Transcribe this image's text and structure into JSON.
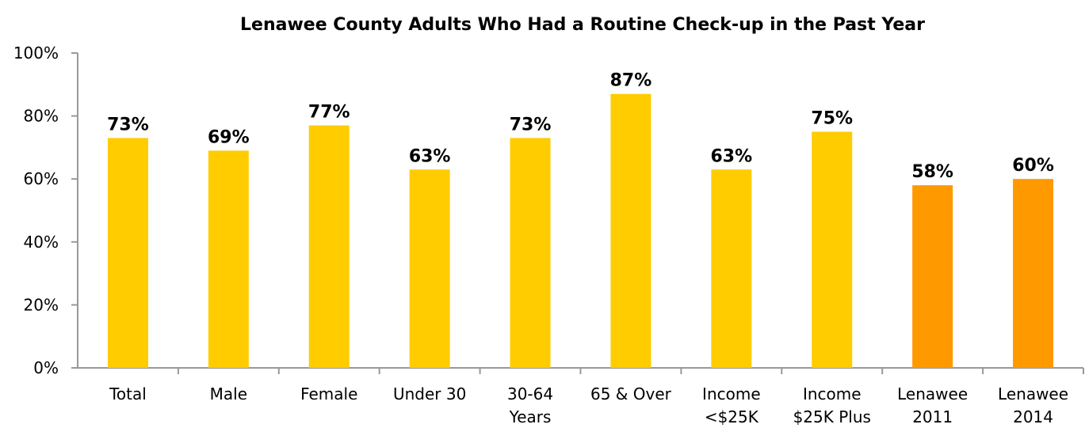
{
  "chart_data": {
    "type": "bar",
    "title": "Lenawee County Adults Who Had a Routine Check-up in the Past Year",
    "categories": [
      "Total",
      "Male",
      "Female",
      "Under 30",
      "30-64\nYears",
      "65 & Over",
      "Income\n<$25K",
      "Income\n$25K Plus",
      "Lenawee\n2011",
      "Lenawee\n2014"
    ],
    "values": [
      73,
      69,
      77,
      63,
      73,
      87,
      63,
      75,
      58,
      60
    ],
    "value_labels": [
      "73%",
      "69%",
      "77%",
      "63%",
      "73%",
      "87%",
      "63%",
      "75%",
      "58%",
      "60%"
    ],
    "colors": [
      "#ffcc00",
      "#ffcc00",
      "#ffcc00",
      "#ffcc00",
      "#ffcc00",
      "#ffcc00",
      "#ffcc00",
      "#ffcc00",
      "#ff9900",
      "#ff9900"
    ],
    "ylim": [
      0,
      100
    ],
    "yticks": [
      {
        "value": 0,
        "label": "0%"
      },
      {
        "value": 20,
        "label": "20%"
      },
      {
        "value": 40,
        "label": "40%"
      },
      {
        "value": 60,
        "label": "60%"
      },
      {
        "value": 80,
        "label": "80%"
      },
      {
        "value": 100,
        "label": "100%"
      }
    ],
    "grid": false
  }
}
